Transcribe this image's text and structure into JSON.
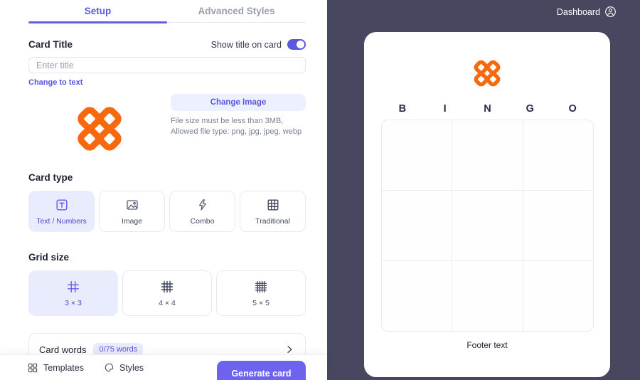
{
  "tabs": {
    "setup": "Setup",
    "advanced": "Advanced Styles"
  },
  "card_title": {
    "label": "Card Title",
    "toggle_label": "Show title on card",
    "toggle_state": "on",
    "input_placeholder": "Enter title",
    "change_link": "Change to text"
  },
  "image_section": {
    "change_button": "Change Image",
    "info_line1": "File size must be less than 3MB,",
    "info_line2": "Allowed file type: png, jpg, jpeg, webp",
    "logo_icon": "clover-logo-icon"
  },
  "card_type": {
    "label": "Card type",
    "options": [
      {
        "label": "Text / Numbers",
        "icon": "text-box-icon",
        "selected": true
      },
      {
        "label": "Image",
        "icon": "image-icon",
        "selected": false
      },
      {
        "label": "Combo",
        "icon": "lightning-icon",
        "selected": false
      },
      {
        "label": "Traditional",
        "icon": "table-grid-icon",
        "selected": false
      }
    ]
  },
  "grid_size": {
    "label": "Grid size",
    "options": [
      {
        "label": "3 × 3",
        "icon": "hash-3x3-icon",
        "selected": true
      },
      {
        "label": "4 × 4",
        "icon": "hash-4x4-icon",
        "selected": false
      },
      {
        "label": "5 × 5",
        "icon": "hash-5x5-icon",
        "selected": false
      }
    ]
  },
  "card_words": {
    "label": "Card words",
    "badge": "0/75 words"
  },
  "footer": {
    "templates": "Templates",
    "styles": "Styles",
    "generate": "Generate card"
  },
  "preview": {
    "dashboard": "Dashboard",
    "bingo_letters": [
      "B",
      "I",
      "N",
      "G",
      "O"
    ],
    "grid_rows": 3,
    "grid_cols": 3,
    "footer_text": "Footer text"
  },
  "colors": {
    "accent": "#5a55e0",
    "accent_light": "#e9ecfc",
    "generate_button": "#6e63f0",
    "logo_orange": "#f8690d",
    "panel_dark": "#47475f",
    "bingo_letter": "#262d47"
  }
}
